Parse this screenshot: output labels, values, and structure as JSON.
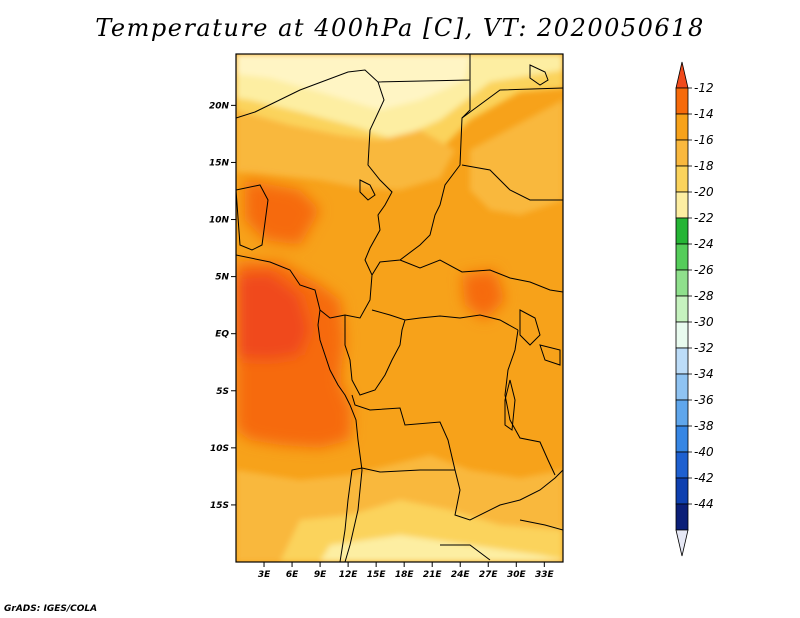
{
  "title": "Temperature at 400hPa [C], VT: 2020050618",
  "credit": "GrADS: IGES/COLA",
  "map": {
    "variable": "Temperature at 400hPa",
    "units": "C",
    "valid_time": "2020050618",
    "lon_range": [
      0,
      35
    ],
    "lat_range": [
      -20,
      24.5
    ],
    "lat_ticks": [
      "20N",
      "15N",
      "10N",
      "5N",
      "EQ",
      "5S",
      "10S",
      "15S"
    ],
    "lon_ticks": [
      "3E",
      "6E",
      "9E",
      "12E",
      "15E",
      "18E",
      "21E",
      "24E",
      "27E",
      "30E",
      "33E"
    ]
  },
  "colorbar": {
    "labels": [
      "-12",
      "-14",
      "-16",
      "-18",
      "-20",
      "-22",
      "-24",
      "-26",
      "-28",
      "-30",
      "-32",
      "-34",
      "-36",
      "-38",
      "-40",
      "-42",
      "-44"
    ],
    "colors": [
      "#f04a1c",
      "#f66a0a",
      "#f7a21a",
      "#f9b83e",
      "#fbd35c",
      "#fdeea2",
      "#25b535",
      "#55cd5a",
      "#8fe08c",
      "#c6f2bf",
      "#e9fbef",
      "#bcdcf8",
      "#8fc3f2",
      "#5fa6ec",
      "#3686e4",
      "#1e60d0",
      "#0e40b0",
      "#0b1f78",
      "#e6e8f5"
    ]
  }
}
